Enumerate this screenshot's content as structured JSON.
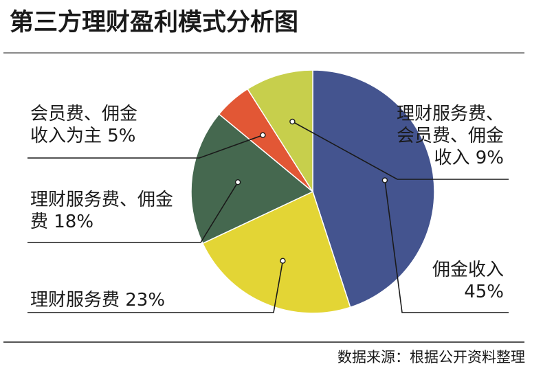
{
  "title": "第三方理财盈利模式分析图",
  "source": "数据来源：根据公开资料整理",
  "chart_data": {
    "type": "pie",
    "slices": [
      {
        "label_lines": [
          "佣金收入",
          "45%"
        ],
        "value": 45,
        "color": "#44548f"
      },
      {
        "label_lines": [
          "理财服务费 23%"
        ],
        "value": 23,
        "color": "#e3d535"
      },
      {
        "label_lines": [
          "理财服务费、佣金",
          "费 18%"
        ],
        "value": 18,
        "color": "#45684f"
      },
      {
        "label_lines": [
          "会员费、佣金",
          "收入为主 5%"
        ],
        "value": 5,
        "color": "#e25735"
      },
      {
        "label_lines": [
          "理财服务费、",
          "会员费、佣金",
          "收入  9%"
        ],
        "value": 9,
        "color": "#c7cf4c"
      }
    ]
  }
}
